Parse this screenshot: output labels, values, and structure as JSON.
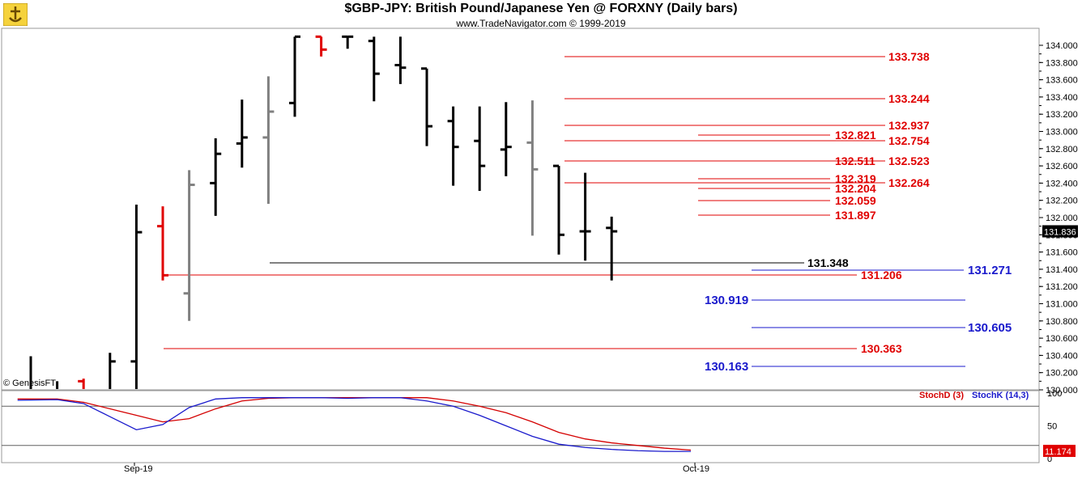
{
  "header": {
    "title": "$GBP-JPY:  British Pound/Japanese Yen @ FORXNY  (Daily bars)",
    "copyright": "www.TradeNavigator.com © 1999-2019"
  },
  "footer": {
    "source": "© GenesisFT"
  },
  "chart_data": [
    {
      "type": "ohlc",
      "title": "$GBP-JPY:  British Pound/Japanese Yen @ FORXNY  (Daily bars)",
      "ylim": [
        130.0,
        134.0
      ],
      "ytick_labels": [
        "130.000",
        "130.200",
        "130.400",
        "130.600",
        "130.800",
        "131.000",
        "131.200",
        "131.400",
        "131.600",
        "131.800",
        "132.000",
        "132.200",
        "132.400",
        "132.600",
        "132.800",
        "133.000",
        "133.200",
        "133.400",
        "133.600",
        "133.800",
        "134.000"
      ],
      "x_labels": [
        "Sep-19",
        "Oct-19"
      ],
      "last_price": "131.836",
      "colors": {
        "up": "#000000",
        "down": "#e00000",
        "neutral": "#808080"
      },
      "bars": [
        {
          "o": 130.0,
          "h": 130.39,
          "l": 129.9,
          "c": 130.0,
          "color": "black"
        },
        {
          "o": 130.0,
          "h": 130.1,
          "l": 129.9,
          "c": 130.0,
          "color": "black"
        },
        {
          "o": 130.1,
          "h": 130.13,
          "l": 129.9,
          "c": 130.0,
          "color": "red"
        },
        {
          "o": 130.0,
          "h": 130.43,
          "l": 129.9,
          "c": 130.33,
          "color": "black"
        },
        {
          "o": 130.33,
          "h": 132.15,
          "l": 129.9,
          "c": 131.83,
          "color": "black"
        },
        {
          "o": 131.9,
          "h": 132.13,
          "l": 131.27,
          "c": 131.33,
          "color": "red"
        },
        {
          "o": 131.12,
          "h": 132.55,
          "l": 130.8,
          "c": 132.38,
          "color": "gray"
        },
        {
          "o": 132.4,
          "h": 132.92,
          "l": 132.02,
          "c": 132.74,
          "color": "black"
        },
        {
          "o": 132.86,
          "h": 133.37,
          "l": 132.58,
          "c": 132.93,
          "color": "black"
        },
        {
          "o": 132.93,
          "h": 133.64,
          "l": 132.16,
          "c": 133.23,
          "color": "gray"
        },
        {
          "o": 133.33,
          "h": 134.1,
          "l": 133.17,
          "c": 134.1,
          "color": "black"
        },
        {
          "o": 134.1,
          "h": 134.1,
          "l": 133.87,
          "c": 133.95,
          "color": "red"
        },
        {
          "o": 134.1,
          "h": 134.1,
          "l": 133.96,
          "c": 134.1,
          "color": "black"
        },
        {
          "o": 134.05,
          "h": 134.1,
          "l": 133.35,
          "c": 133.67,
          "color": "black"
        },
        {
          "o": 133.77,
          "h": 134.1,
          "l": 133.55,
          "c": 133.74,
          "color": "black"
        },
        {
          "o": 133.73,
          "h": 133.73,
          "l": 132.83,
          "c": 133.06,
          "color": "black"
        },
        {
          "o": 133.12,
          "h": 133.29,
          "l": 132.37,
          "c": 132.82,
          "color": "black"
        },
        {
          "o": 132.89,
          "h": 133.29,
          "l": 132.31,
          "c": 132.6,
          "color": "black"
        },
        {
          "o": 132.79,
          "h": 133.34,
          "l": 132.48,
          "c": 132.82,
          "color": "black"
        },
        {
          "o": 132.87,
          "h": 133.36,
          "l": 131.79,
          "c": 132.56,
          "color": "gray"
        },
        {
          "o": 132.6,
          "h": 132.6,
          "l": 131.57,
          "c": 131.8,
          "color": "black"
        },
        {
          "o": 131.84,
          "h": 132.52,
          "l": 131.5,
          "c": 131.84,
          "color": "black"
        },
        {
          "o": 131.88,
          "h": 132.01,
          "l": 131.27,
          "c": 131.84,
          "color": "black"
        }
      ],
      "levels": [
        {
          "value": 133.738,
          "label": "133.738",
          "color": "#e00000"
        },
        {
          "value": 133.244,
          "label": "133.244",
          "color": "#e00000"
        },
        {
          "value": 132.937,
          "label": "132.937",
          "color": "#e00000"
        },
        {
          "value": 132.821,
          "label": "132.821",
          "color": "#e00000"
        },
        {
          "value": 132.754,
          "label": "132.754",
          "color": "#e00000"
        },
        {
          "value": 132.511,
          "label": "132.511",
          "color": "#e00000"
        },
        {
          "value": 132.523,
          "label": "132.523",
          "color": "#e00000"
        },
        {
          "value": 132.319,
          "label": "132.319",
          "color": "#e00000"
        },
        {
          "value": 132.264,
          "label": "132.264",
          "color": "#e00000"
        },
        {
          "value": 132.204,
          "label": "132.204",
          "color": "#e00000"
        },
        {
          "value": 132.059,
          "label": "132.059",
          "color": "#e00000"
        },
        {
          "value": 131.897,
          "label": "131.897",
          "color": "#e00000"
        },
        {
          "value": 131.348,
          "label": "131.348",
          "color": "#000000"
        },
        {
          "value": 131.271,
          "label": "131.271",
          "color": "#1a1acc"
        },
        {
          "value": 131.206,
          "label": "131.206",
          "color": "#e00000"
        },
        {
          "value": 130.919,
          "label": "130.919",
          "color": "#1a1acc"
        },
        {
          "value": 130.605,
          "label": "130.605",
          "color": "#1a1acc"
        },
        {
          "value": 130.363,
          "label": "130.363",
          "color": "#e00000"
        },
        {
          "value": 130.163,
          "label": "130.163",
          "color": "#1a1acc"
        }
      ]
    },
    {
      "type": "line",
      "series": [
        {
          "name": "StochD (3)",
          "color": "#d40000",
          "values": [
            [
              0.5,
              91
            ],
            [
              2,
              91
            ],
            [
              3,
              86
            ],
            [
              5,
              66
            ],
            [
              6,
              56
            ],
            [
              7,
              61
            ],
            [
              8,
              76
            ],
            [
              9,
              88
            ],
            [
              10,
              92
            ],
            [
              11,
              93
            ],
            [
              12,
              93
            ],
            [
              13,
              93
            ],
            [
              14,
              93
            ],
            [
              15,
              93
            ],
            [
              16,
              93
            ],
            [
              17,
              88
            ],
            [
              18,
              80
            ],
            [
              19,
              70
            ],
            [
              20,
              56
            ],
            [
              21,
              40
            ],
            [
              22,
              30
            ],
            [
              23,
              24
            ],
            [
              24,
              20
            ],
            [
              25,
              16
            ],
            [
              26,
              13
            ]
          ]
        },
        {
          "name": "StochK (14,3)",
          "color": "#1a1acc",
          "values": [
            [
              0.5,
              89
            ],
            [
              2,
              90
            ],
            [
              3,
              84
            ],
            [
              4,
              64
            ],
            [
              5,
              44
            ],
            [
              6,
              52
            ],
            [
              7,
              78
            ],
            [
              8,
              91
            ],
            [
              9,
              93
            ],
            [
              10,
              93
            ],
            [
              11,
              93
            ],
            [
              12,
              93
            ],
            [
              13,
              92
            ],
            [
              14,
              93
            ],
            [
              15,
              93
            ],
            [
              16,
              88
            ],
            [
              17,
              80
            ],
            [
              18,
              66
            ],
            [
              19,
              50
            ],
            [
              20,
              34
            ],
            [
              21,
              22
            ],
            [
              22,
              17
            ],
            [
              23,
              14
            ],
            [
              24,
              12
            ],
            [
              25,
              11
            ],
            [
              26,
              11
            ]
          ]
        }
      ],
      "ylim": [
        0,
        100
      ],
      "ytick_labels": [
        "100",
        "50",
        "0"
      ],
      "reference_lines": [
        80,
        20
      ],
      "last_value": "11.174"
    }
  ]
}
